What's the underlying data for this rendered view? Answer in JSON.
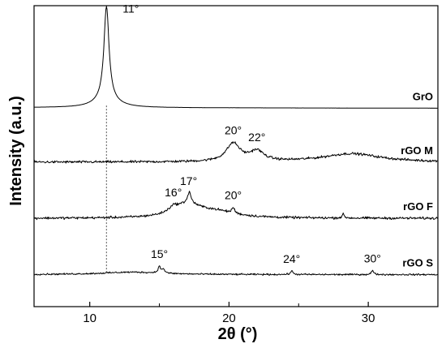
{
  "chart_data": {
    "type": "line",
    "xlabel": "2θ (°)",
    "ylabel": "Intensity (a.u.)",
    "xlim": [
      6,
      35
    ],
    "xticks": [
      10,
      20,
      30
    ],
    "yticks": [],
    "grid": false,
    "reference_line_x": 11.2,
    "series": [
      {
        "name": "GrO",
        "baseline": 0.92,
        "noise": 0.002,
        "slope": -0.03,
        "peaks": [
          {
            "x": 11.2,
            "height": 4.7,
            "width": 0.22
          },
          {
            "x": 11.2,
            "height": 0.35,
            "width": 1.0
          }
        ],
        "labels": [
          {
            "x": 11.2,
            "text": "11°"
          }
        ]
      },
      {
        "name": "rGO M",
        "baseline": -1.8,
        "noise": 0.09,
        "slope": 0,
        "peaks": [
          {
            "x": 20.3,
            "height": 0.9,
            "width": 0.6
          },
          {
            "x": 22.0,
            "height": 0.5,
            "width": 0.6
          },
          {
            "x": 28.8,
            "height": 0.42,
            "width": 2.5
          }
        ],
        "labels": [
          {
            "x": 20.3,
            "text": "20°"
          },
          {
            "x": 22.0,
            "text": "22°"
          }
        ]
      },
      {
        "name": "rGO F",
        "baseline": -4.6,
        "noise": 0.09,
        "slope": 0,
        "peaks": [
          {
            "x": 17.0,
            "height": 0.6,
            "width": 1.2
          },
          {
            "x": 17.15,
            "height": 0.55,
            "width": 0.15
          },
          {
            "x": 16.0,
            "height": 0.25,
            "width": 0.4
          },
          {
            "x": 20.3,
            "height": 0.28,
            "width": 0.12
          },
          {
            "x": 19.0,
            "height": 0.3,
            "width": 1.8
          },
          {
            "x": 28.2,
            "height": 0.18,
            "width": 0.1
          }
        ],
        "labels": [
          {
            "x": 16.0,
            "text": "16°"
          },
          {
            "x": 17.1,
            "text": "17°"
          },
          {
            "x": 20.3,
            "text": "20°"
          }
        ]
      },
      {
        "name": "rGO S",
        "baseline": -7.4,
        "noise": 0.06,
        "slope": -0.005,
        "peaks": [
          {
            "x": 15.0,
            "height": 0.32,
            "width": 0.12
          },
          {
            "x": 15.3,
            "height": 0.2,
            "width": 0.1
          },
          {
            "x": 24.5,
            "height": 0.18,
            "width": 0.1
          },
          {
            "x": 30.3,
            "height": 0.2,
            "width": 0.1
          },
          {
            "x": 13.0,
            "height": 0.12,
            "width": 2.5
          }
        ],
        "labels": [
          {
            "x": 15.0,
            "text": "15°"
          },
          {
            "x": 24.5,
            "text": "24°"
          },
          {
            "x": 30.3,
            "text": "30°"
          }
        ]
      }
    ]
  }
}
